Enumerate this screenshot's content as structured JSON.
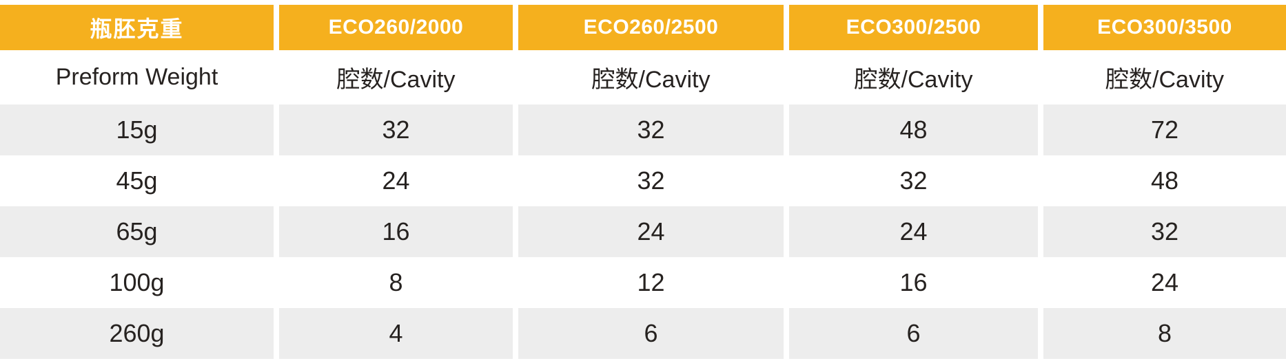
{
  "table": {
    "title_cell_cn": "瓶胚克重",
    "title_cell_en": "Preform Weight",
    "machines": [
      {
        "model": "ECO260/2000"
      },
      {
        "model": "ECO260/2500"
      },
      {
        "model": "ECO300/2500"
      },
      {
        "model": "ECO300/3500"
      }
    ],
    "cavity_label": "腔数/Cavity",
    "rows": [
      {
        "weight": "15g",
        "values": [
          "32",
          "32",
          "48",
          "72"
        ]
      },
      {
        "weight": "45g",
        "values": [
          "24",
          "32",
          "32",
          "48"
        ]
      },
      {
        "weight": "65g",
        "values": [
          "16",
          "24",
          "24",
          "32"
        ]
      },
      {
        "weight": "100g",
        "values": [
          "8",
          "12",
          "16",
          "24"
        ]
      },
      {
        "weight": "260g",
        "values": [
          "4",
          "6",
          "6",
          "8"
        ]
      }
    ],
    "colors": {
      "header_bg": "#F5B01E",
      "header_text": "#FFFFFF",
      "stripe_bg": "#EDEDED",
      "body_text": "#262220"
    }
  }
}
